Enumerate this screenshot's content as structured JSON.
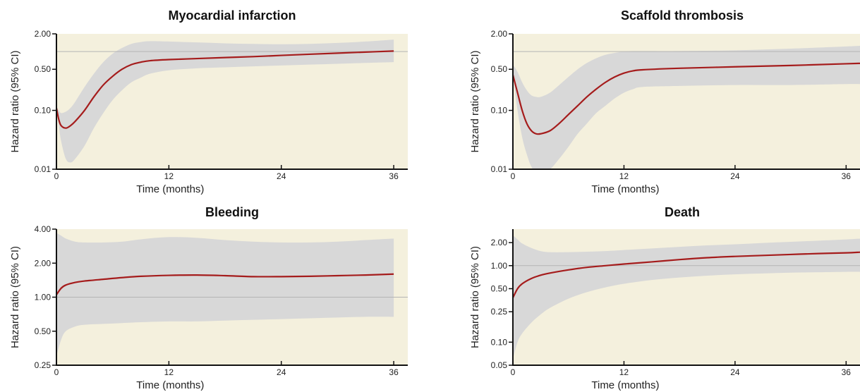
{
  "chart_data": [
    {
      "type": "line",
      "title": "Myocardial infarction",
      "xlabel": "Time (months)",
      "ylabel": "Hazard ratio (95% CI)",
      "x_ticks": [
        0,
        12,
        24,
        36
      ],
      "y_ticks": [
        0.01,
        0.1,
        0.5,
        2.0
      ],
      "y_tick_labels": [
        "0.01",
        "0.10",
        "0.50",
        "2.00"
      ],
      "xlim": [
        0,
        37.5
      ],
      "ylim": [
        0.01,
        2.0
      ],
      "y_scale": "log",
      "reference_line": 1.0,
      "series": [
        {
          "x": [
            0,
            0.25,
            0.5,
            1,
            1.5,
            2,
            3,
            4,
            5,
            6,
            7,
            8,
            9,
            10,
            12,
            15,
            18,
            21,
            24,
            27,
            30,
            33,
            36
          ],
          "estimate": [
            0.11,
            0.07,
            0.055,
            0.05,
            0.055,
            0.065,
            0.1,
            0.17,
            0.27,
            0.38,
            0.5,
            0.6,
            0.66,
            0.7,
            0.73,
            0.76,
            0.79,
            0.82,
            0.86,
            0.9,
            0.94,
            0.98,
            1.02
          ],
          "lower": [
            0.11,
            0.055,
            0.03,
            0.015,
            0.013,
            0.015,
            0.025,
            0.05,
            0.09,
            0.15,
            0.22,
            0.3,
            0.36,
            0.42,
            0.48,
            0.52,
            0.54,
            0.56,
            0.58,
            0.6,
            0.62,
            0.64,
            0.66
          ],
          "upper": [
            0.11,
            0.1,
            0.09,
            0.095,
            0.11,
            0.14,
            0.25,
            0.42,
            0.66,
            0.92,
            1.15,
            1.35,
            1.45,
            1.5,
            1.48,
            1.43,
            1.38,
            1.35,
            1.33,
            1.35,
            1.4,
            1.48,
            1.6
          ]
        }
      ]
    },
    {
      "type": "line",
      "title": "Scaffold thrombosis",
      "xlabel": "Time (months)",
      "ylabel": "Hazard ratio (95% CI)",
      "x_ticks": [
        0,
        12,
        24,
        36
      ],
      "y_ticks": [
        0.01,
        0.1,
        0.5,
        2.0
      ],
      "y_tick_labels": [
        "0.01",
        "0.10",
        "0.50",
        "2.00"
      ],
      "xlim": [
        0,
        37.5
      ],
      "ylim": [
        0.01,
        2.0
      ],
      "y_scale": "log",
      "reference_line": 1.0,
      "series": [
        {
          "x": [
            0,
            0.5,
            1,
            1.5,
            2,
            2.5,
            3,
            4,
            5,
            6,
            7,
            8,
            9,
            10,
            11,
            12,
            13,
            14,
            18,
            24,
            30,
            36,
            37.5
          ],
          "estimate": [
            0.4,
            0.2,
            0.1,
            0.06,
            0.045,
            0.04,
            0.04,
            0.045,
            0.06,
            0.085,
            0.12,
            0.17,
            0.23,
            0.3,
            0.37,
            0.43,
            0.47,
            0.49,
            0.52,
            0.55,
            0.58,
            0.62,
            0.63
          ],
          "lower": [
            0.4,
            0.1,
            0.035,
            0.018,
            0.011,
            0.009,
            0.009,
            0.01,
            0.015,
            0.024,
            0.04,
            0.06,
            0.09,
            0.12,
            0.16,
            0.2,
            0.23,
            0.25,
            0.26,
            0.27,
            0.27,
            0.28,
            0.28
          ],
          "upper": [
            0.6,
            0.45,
            0.3,
            0.22,
            0.18,
            0.17,
            0.17,
            0.2,
            0.27,
            0.37,
            0.5,
            0.64,
            0.77,
            0.88,
            0.95,
            1.0,
            1.02,
            1.02,
            1.02,
            1.05,
            1.12,
            1.22,
            1.25
          ]
        }
      ]
    },
    {
      "type": "line",
      "title": "Bleeding",
      "xlabel": "Time (months)",
      "ylabel": "Hazard ratio (95% CI)",
      "x_ticks": [
        0,
        12,
        24,
        36
      ],
      "y_ticks": [
        0.25,
        0.5,
        1.0,
        2.0,
        4.0
      ],
      "y_tick_labels": [
        "0.25",
        "0.50",
        "1.00",
        "2.00",
        "4.00"
      ],
      "xlim": [
        0,
        37.5
      ],
      "ylim": [
        0.25,
        4.0
      ],
      "y_scale": "log",
      "reference_line": 1.0,
      "series": [
        {
          "x": [
            0,
            0.5,
            1,
            2,
            3,
            5,
            7,
            9,
            12,
            15,
            18,
            21,
            24,
            27,
            30,
            33,
            36
          ],
          "estimate": [
            1.05,
            1.2,
            1.28,
            1.35,
            1.39,
            1.44,
            1.49,
            1.53,
            1.56,
            1.57,
            1.55,
            1.52,
            1.52,
            1.53,
            1.55,
            1.57,
            1.6
          ],
          "lower": [
            0.3,
            0.42,
            0.5,
            0.55,
            0.57,
            0.58,
            0.59,
            0.6,
            0.61,
            0.61,
            0.62,
            0.63,
            0.64,
            0.65,
            0.66,
            0.67,
            0.67
          ],
          "upper": [
            3.7,
            3.5,
            3.3,
            3.1,
            3.05,
            3.05,
            3.1,
            3.25,
            3.4,
            3.35,
            3.2,
            3.1,
            3.05,
            3.05,
            3.1,
            3.2,
            3.3
          ]
        }
      ]
    },
    {
      "type": "line",
      "title": "Death",
      "xlabel": "Time (months)",
      "ylabel": "Hazard ratio (95% CI)",
      "x_ticks": [
        0,
        12,
        24,
        36
      ],
      "y_ticks": [
        0.05,
        0.1,
        0.25,
        0.5,
        1.0,
        2.0
      ],
      "y_tick_labels": [
        "0.05",
        "0.10",
        "0.25",
        "0.50",
        "1.00",
        "2.00"
      ],
      "xlim": [
        0,
        37.5
      ],
      "ylim": [
        0.05,
        3.0
      ],
      "y_scale": "log",
      "reference_line": 1.0,
      "series": [
        {
          "x": [
            0,
            0.5,
            1,
            2,
            3,
            4,
            6,
            8,
            10,
            12,
            15,
            18,
            21,
            24,
            27,
            30,
            33,
            36,
            37.5
          ],
          "estimate": [
            0.38,
            0.5,
            0.58,
            0.68,
            0.75,
            0.8,
            0.88,
            0.95,
            1.0,
            1.05,
            1.12,
            1.2,
            1.27,
            1.32,
            1.36,
            1.4,
            1.44,
            1.47,
            1.5
          ],
          "lower": [
            0.06,
            0.1,
            0.13,
            0.18,
            0.23,
            0.28,
            0.37,
            0.45,
            0.52,
            0.58,
            0.65,
            0.7,
            0.74,
            0.77,
            0.79,
            0.81,
            0.82,
            0.83,
            0.83
          ],
          "upper": [
            2.5,
            2.2,
            1.95,
            1.7,
            1.55,
            1.5,
            1.5,
            1.52,
            1.55,
            1.6,
            1.68,
            1.76,
            1.84,
            1.9,
            1.98,
            2.05,
            2.12,
            2.2,
            2.25
          ]
        }
      ]
    }
  ]
}
